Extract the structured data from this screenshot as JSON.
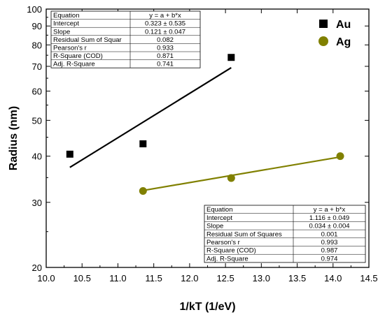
{
  "chart_data": {
    "type": "scatter",
    "xlabel": "1/kT (1/eV)",
    "ylabel": "Radius (nm)",
    "xlim": [
      10.0,
      14.5
    ],
    "ylim": [
      20,
      100
    ],
    "yscale": "log",
    "x_ticks": [
      "10.0",
      "10.5",
      "11.0",
      "11.5",
      "12.0",
      "12.5",
      "13.0",
      "13.5",
      "14.0",
      "14.5"
    ],
    "y_ticks": [
      "20",
      "30",
      "40",
      "50",
      "60",
      "70",
      "80",
      "90",
      "100"
    ],
    "grid": false,
    "legend_position": "top-right",
    "series": [
      {
        "name": "Au",
        "marker": "square",
        "color": "#000000",
        "points": [
          [
            10.33,
            40.5
          ],
          [
            11.35,
            43.2
          ],
          [
            12.58,
            74.0
          ]
        ],
        "fit": {
          "x": [
            10.33,
            12.58
          ],
          "y": [
            37.3,
            69.4
          ]
        }
      },
      {
        "name": "Ag",
        "marker": "circle",
        "color": "#808000",
        "points": [
          [
            11.35,
            32.2
          ],
          [
            12.58,
            34.9
          ],
          [
            14.1,
            40.0
          ]
        ],
        "fit": {
          "x": [
            11.35,
            14.1
          ],
          "y": [
            32.3,
            39.8
          ]
        }
      }
    ],
    "annotations": [
      {
        "series": "Au",
        "rows": [
          [
            "Equation",
            "y = a + b*x"
          ],
          [
            "Intercept",
            "0.323 ± 0.535"
          ],
          [
            "Slope",
            "0.121 ± 0.047"
          ],
          [
            "Residual Sum of Squar",
            "0.082"
          ],
          [
            "Pearson's r",
            "0.933"
          ],
          [
            "R-Square (COD)",
            "0.871"
          ],
          [
            "Adj. R-Square",
            "0.741"
          ]
        ]
      },
      {
        "series": "Ag",
        "rows": [
          [
            "Equation",
            "y = a + b*x"
          ],
          [
            "Intercept",
            "1.116 ± 0.049"
          ],
          [
            "Slope",
            "0.034 ± 0.004"
          ],
          [
            "Residual Sum of Squares",
            "0.001"
          ],
          [
            "Pearson's r",
            "0.993"
          ],
          [
            "R-Square (COD)",
            "0.987"
          ],
          [
            "Adj. R-Square",
            "0.974"
          ]
        ]
      }
    ]
  }
}
